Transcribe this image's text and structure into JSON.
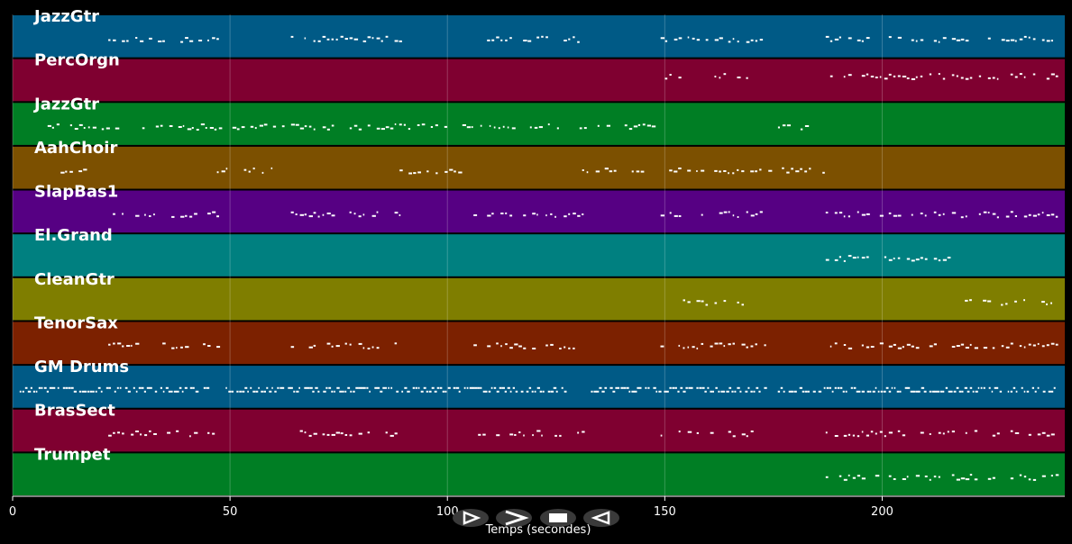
{
  "chart_data": {
    "type": "piano-roll",
    "xlabel": "Temps (secondes)",
    "xlim": [
      0,
      242
    ],
    "xticks": [
      0,
      50,
      100,
      150,
      200
    ],
    "grid": true,
    "tracks": [
      {
        "name": "JazzGtr",
        "color": "#005a86",
        "segments": [
          [
            22,
            47
          ],
          [
            64,
            89
          ],
          [
            106,
            131
          ],
          [
            148,
            173
          ],
          [
            187,
            240
          ]
        ]
      },
      {
        "name": "PercOrgn",
        "color": "#7f0030",
        "segments": [
          [
            149,
            171
          ],
          [
            187,
            240
          ]
        ]
      },
      {
        "name": "JazzGtr",
        "color": "#007e24",
        "segments": [
          [
            7,
            148
          ],
          [
            175,
            184
          ]
        ]
      },
      {
        "name": "AahChoir",
        "color": "#7c5000",
        "segments": [
          [
            10,
            20
          ],
          [
            47,
            60
          ],
          [
            89,
            103
          ],
          [
            131,
            146
          ],
          [
            151,
            187
          ]
        ]
      },
      {
        "name": "SlapBas1",
        "color": "#560083",
        "segments": [
          [
            22,
            47
          ],
          [
            64,
            89
          ],
          [
            106,
            131
          ],
          [
            148,
            173
          ],
          [
            187,
            240
          ]
        ]
      },
      {
        "name": "El.Grand",
        "color": "#008080",
        "segments": [
          [
            187,
            215
          ]
        ]
      },
      {
        "name": "CleanGtr",
        "color": "#7f7e00",
        "segments": [
          [
            149,
            169
          ],
          [
            219,
            240
          ]
        ]
      },
      {
        "name": "TenorSax",
        "color": "#7c2100",
        "segments": [
          [
            22,
            47
          ],
          [
            64,
            89
          ],
          [
            106,
            131
          ],
          [
            149,
            173
          ],
          [
            187,
            240
          ]
        ]
      },
      {
        "name": "GM Drums",
        "color": "#005a86",
        "segments": [
          [
            1,
            45
          ],
          [
            49,
            91
          ],
          [
            92,
            127
          ],
          [
            133,
            173
          ],
          [
            176,
            240
          ]
        ]
      },
      {
        "name": "BrasSect",
        "color": "#7f0030",
        "segments": [
          [
            22,
            47
          ],
          [
            64,
            89
          ],
          [
            106,
            131
          ],
          [
            148,
            173
          ],
          [
            187,
            240
          ]
        ]
      },
      {
        "name": "Trumpet",
        "color": "#007e24",
        "segments": [
          [
            187,
            240
          ]
        ]
      }
    ]
  },
  "controls": {
    "play_icon": "play-outline-icon",
    "fast_forward_icon": "fast-forward-icon",
    "stop_icon": "stop-icon",
    "rewind_icon": "rewind-icon"
  }
}
